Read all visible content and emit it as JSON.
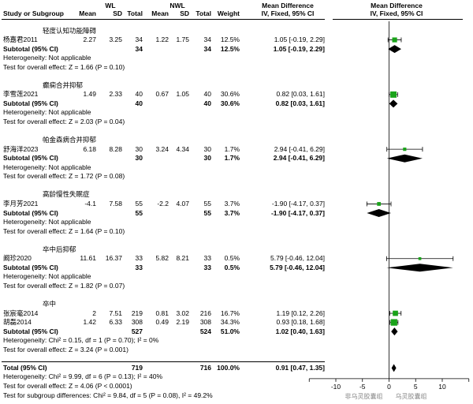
{
  "header": {
    "group1": "WL",
    "group2": "NWL",
    "study_label": "Study or Subgroup",
    "mean": "Mean",
    "sd": "SD",
    "total": "Total",
    "weight": "Weight",
    "md_title": "Mean Difference",
    "md_sub": "IV, Fixed, 95% CI",
    "plot_title": "Mean Difference",
    "plot_sub": "IV, Fixed, 95% CI"
  },
  "rows": [
    {
      "kind": "group",
      "label": "轻度认知功能障碍"
    },
    {
      "kind": "study",
      "label": "杨嘉君2011",
      "m1": "2.27",
      "sd1": "3.25",
      "n1": "34",
      "m2": "1.22",
      "sd2": "1.75",
      "n2": "34",
      "weight": "12.5%",
      "ci": "1.05 [-0.19, 2.29]"
    },
    {
      "kind": "subtotal",
      "label": "Subtotal (95% CI)",
      "n1": "34",
      "n2": "34",
      "weight": "12.5%",
      "ci": "1.05 [-0.19, 2.29]"
    },
    {
      "kind": "note",
      "label": "Heterogeneity: Not applicable"
    },
    {
      "kind": "note",
      "label": "Test for overall effect: Z = 1.66 (P = 0.10)"
    },
    {
      "kind": "blank"
    },
    {
      "kind": "group",
      "label": "癫痫合并抑郁"
    },
    {
      "kind": "study",
      "label": "李雪莲2021",
      "m1": "1.49",
      "sd1": "2.33",
      "n1": "40",
      "m2": "0.67",
      "sd2": "1.05",
      "n2": "40",
      "weight": "30.6%",
      "ci": "0.82 [0.03, 1.61]"
    },
    {
      "kind": "subtotal",
      "label": "Subtotal (95% CI)",
      "n1": "40",
      "n2": "40",
      "weight": "30.6%",
      "ci": "0.82 [0.03, 1.61]"
    },
    {
      "kind": "note",
      "label": "Heterogeneity: Not applicable"
    },
    {
      "kind": "note",
      "label": "Test for overall effect: Z = 2.03 (P = 0.04)"
    },
    {
      "kind": "blank"
    },
    {
      "kind": "group",
      "label": "帕金森病合并抑郁"
    },
    {
      "kind": "study",
      "label": "舒海洋2023",
      "m1": "6.18",
      "sd1": "8.28",
      "n1": "30",
      "m2": "3.24",
      "sd2": "4.34",
      "n2": "30",
      "weight": "1.7%",
      "ci": "2.94 [-0.41, 6.29]"
    },
    {
      "kind": "subtotal",
      "label": "Subtotal (95% CI)",
      "n1": "30",
      "n2": "30",
      "weight": "1.7%",
      "ci": "2.94 [-0.41, 6.29]"
    },
    {
      "kind": "note",
      "label": "Heterogeneity: Not applicable"
    },
    {
      "kind": "note",
      "label": "Test for overall effect: Z = 1.72 (P = 0.08)"
    },
    {
      "kind": "blank"
    },
    {
      "kind": "group",
      "label": "高龄慢性失眠症"
    },
    {
      "kind": "study",
      "label": "李月芳2021",
      "m1": "-4.1",
      "sd1": "7.58",
      "n1": "55",
      "m2": "-2.2",
      "sd2": "4.07",
      "n2": "55",
      "weight": "3.7%",
      "ci": "-1.90 [-4.17, 0.37]"
    },
    {
      "kind": "subtotal",
      "label": "Subtotal (95% CI)",
      "n1": "55",
      "n2": "55",
      "weight": "3.7%",
      "ci": "-1.90 [-4.17, 0.37]"
    },
    {
      "kind": "note",
      "label": "Heterogeneity: Not applicable"
    },
    {
      "kind": "note",
      "label": "Test for overall effect: Z = 1.64 (P = 0.10)"
    },
    {
      "kind": "blank"
    },
    {
      "kind": "group",
      "label": "卒中后抑郁"
    },
    {
      "kind": "study",
      "label": "阚珍2020",
      "m1": "11.61",
      "sd1": "16.37",
      "n1": "33",
      "m2": "5.82",
      "sd2": "8.21",
      "n2": "33",
      "weight": "0.5%",
      "ci": "5.79 [-0.46, 12.04]"
    },
    {
      "kind": "subtotal",
      "label": "Subtotal (95% CI)",
      "n1": "33",
      "n2": "33",
      "weight": "0.5%",
      "ci": "5.79 [-0.46, 12.04]"
    },
    {
      "kind": "note",
      "label": "Heterogeneity: Not applicable"
    },
    {
      "kind": "note",
      "label": "Test for overall effect: Z = 1.82 (P = 0.07)"
    },
    {
      "kind": "blank"
    },
    {
      "kind": "group",
      "label": "卒中"
    },
    {
      "kind": "study",
      "label": "张宸毫2014",
      "m1": "2",
      "sd1": "7.51",
      "n1": "219",
      "m2": "0.81",
      "sd2": "3.02",
      "n2": "216",
      "weight": "16.7%",
      "ci": "1.19 [0.12, 2.26]"
    },
    {
      "kind": "study",
      "label": "胡磊2014",
      "m1": "1.42",
      "sd1": "6.33",
      "n1": "308",
      "m2": "0.49",
      "sd2": "2.19",
      "n2": "308",
      "weight": "34.3%",
      "ci": "0.93 [0.18, 1.68]"
    },
    {
      "kind": "subtotal",
      "label": "Subtotal (95% CI)",
      "n1": "527",
      "n2": "524",
      "weight": "51.0%",
      "ci": "1.02 [0.40, 1.63]"
    },
    {
      "kind": "note",
      "label": "Heterogeneity: Chi² = 0.15, df = 1 (P = 0.70); I² = 0%"
    },
    {
      "kind": "note",
      "label": "Test for overall effect: Z = 3.24 (P = 0.001)"
    },
    {
      "kind": "blank"
    },
    {
      "kind": "total",
      "label": "Total (95% CI)",
      "n1": "719",
      "n2": "716",
      "weight": "100.0%",
      "ci": "0.91 [0.47, 1.35]"
    },
    {
      "kind": "note",
      "label": "Heterogeneity: Chi² = 9.99, df = 6 (P = 0.13); I² = 40%"
    },
    {
      "kind": "note",
      "label": "Test for overall effect: Z = 4.06 (P < 0.0001)"
    },
    {
      "kind": "note",
      "label": "Test for subgroup differences: Chi² = 9.84, df = 5 (P = 0.08), I² = 49.2%"
    }
  ],
  "chart_data": {
    "type": "scatter",
    "xlim": [
      -15,
      15
    ],
    "ticks": [
      -10,
      -5,
      0,
      5,
      10
    ],
    "xlabel_left": "非乌灵胶囊组",
    "xlabel_right": "乌灵胶囊组",
    "square_color": "#1aa31a",
    "studies": [
      {
        "row": 1,
        "md": 1.05,
        "lo": -0.19,
        "hi": 2.29,
        "weight": 12.5
      },
      {
        "row": 7,
        "md": 0.82,
        "lo": 0.03,
        "hi": 1.61,
        "weight": 30.6
      },
      {
        "row": 13,
        "md": 2.94,
        "lo": -0.41,
        "hi": 6.29,
        "weight": 1.7
      },
      {
        "row": 19,
        "md": -1.9,
        "lo": -4.17,
        "hi": 0.37,
        "weight": 3.7
      },
      {
        "row": 25,
        "md": 5.79,
        "lo": -0.46,
        "hi": 12.04,
        "weight": 0.5
      },
      {
        "row": 31,
        "md": 1.19,
        "lo": 0.12,
        "hi": 2.26,
        "weight": 16.7
      },
      {
        "row": 32,
        "md": 0.93,
        "lo": 0.18,
        "hi": 1.68,
        "weight": 34.3
      }
    ],
    "diamonds": [
      {
        "row": 2,
        "md": 1.05,
        "lo": -0.19,
        "hi": 2.29
      },
      {
        "row": 8,
        "md": 0.82,
        "lo": 0.03,
        "hi": 1.61
      },
      {
        "row": 14,
        "md": 2.94,
        "lo": -0.41,
        "hi": 6.29
      },
      {
        "row": 20,
        "md": -1.9,
        "lo": -4.17,
        "hi": 0.37
      },
      {
        "row": 26,
        "md": 5.79,
        "lo": -0.46,
        "hi": 12.04
      },
      {
        "row": 33,
        "md": 1.02,
        "lo": 0.4,
        "hi": 1.63
      },
      {
        "row": 37,
        "md": 0.91,
        "lo": 0.47,
        "hi": 1.35
      }
    ]
  }
}
